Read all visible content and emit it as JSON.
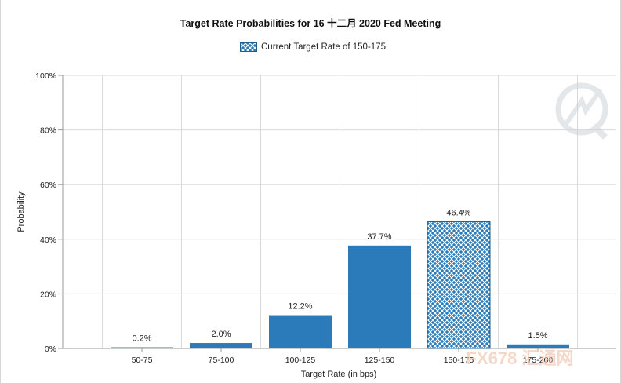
{
  "chart_data": {
    "type": "bar",
    "title": "Target Rate Probabilities for 16 十二月 2020 Fed Meeting",
    "legend": {
      "label": "Current Target Rate of 150-175",
      "placement": "top-center"
    },
    "xlabel": "Target Rate (in bps)",
    "ylabel": "Probability",
    "categories": [
      "50-75",
      "75-100",
      "100-125",
      "125-150",
      "150-175",
      "175-200"
    ],
    "values": [
      0.2,
      2.0,
      12.2,
      37.7,
      46.4,
      1.5
    ],
    "value_labels": [
      "0.2%",
      "2.0%",
      "12.2%",
      "37.7%",
      "46.4%",
      "1.5%"
    ],
    "current_category": "150-175",
    "ylim": [
      0,
      100
    ],
    "yticks": [
      0,
      20,
      40,
      60,
      80,
      100
    ],
    "ytick_labels": [
      "0%",
      "20%",
      "40%",
      "60%",
      "80%",
      "100%"
    ],
    "grid": true,
    "bar_color": "#2b7bba",
    "hatch_color": "#2b7bba",
    "watermark_text": "FX678 汇通网"
  }
}
